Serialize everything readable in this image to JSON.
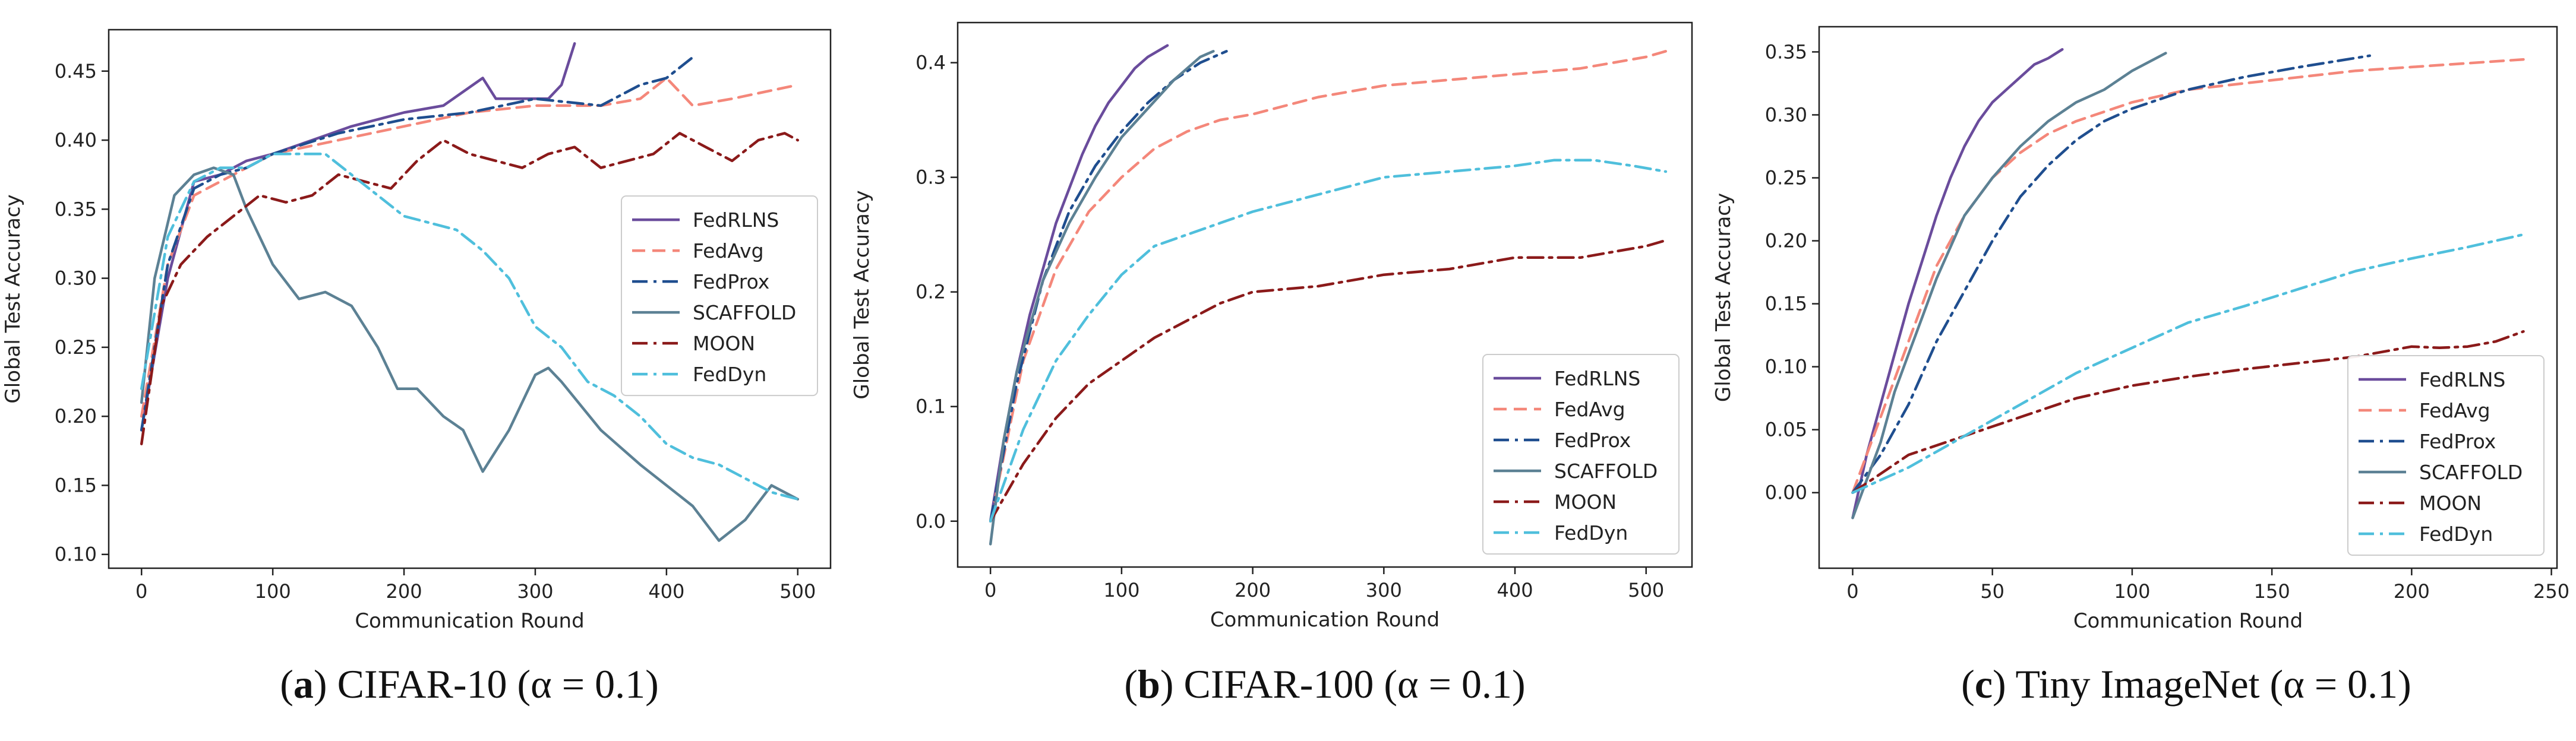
{
  "legend_labels": [
    "FedRLNS",
    "FedAvg",
    "FedProx",
    "SCAFFOLD",
    "MOON",
    "FedDyn"
  ],
  "series_styles": {
    "FedRLNS": {
      "color": "#6a4c9c",
      "dash": "solid"
    },
    "FedAvg": {
      "color": "#f4877a",
      "dash": "dashed"
    },
    "FedProx": {
      "color": "#1f4e8f",
      "dash": "dashdot"
    },
    "SCAFFOLD": {
      "color": "#5c8194",
      "dash": "solid"
    },
    "MOON": {
      "color": "#8b1a1a",
      "dash": "dashdot"
    },
    "FedDyn": {
      "color": "#4fbfdc",
      "dash": "dashdot"
    }
  },
  "chart_data": [
    {
      "type": "line",
      "panel": "a",
      "caption": {
        "label": "a",
        "text": "CIFAR-10 (α = 0.1)"
      },
      "xlabel": "Communication Round",
      "ylabel": "Global Test Accuracy",
      "xlim": [
        -25,
        525
      ],
      "ylim": [
        0.09,
        0.48
      ],
      "xticks": [
        0,
        100,
        200,
        300,
        400,
        500
      ],
      "yticks": [
        0.1,
        0.15,
        0.2,
        0.25,
        0.3,
        0.35,
        0.4,
        0.45
      ],
      "ytick_labels": [
        "0.10",
        "0.15",
        "0.20",
        "0.25",
        "0.30",
        "0.35",
        "0.40",
        "0.45"
      ],
      "legend_position": "center-right",
      "series": [
        {
          "name": "FedRLNS",
          "x": [
            0,
            20,
            40,
            60,
            80,
            100,
            130,
            160,
            200,
            230,
            260,
            270,
            290,
            310,
            320,
            330
          ],
          "y": [
            0.19,
            0.3,
            0.37,
            0.375,
            0.385,
            0.39,
            0.4,
            0.41,
            0.42,
            0.425,
            0.445,
            0.43,
            0.43,
            0.43,
            0.44,
            0.47
          ]
        },
        {
          "name": "FedAvg",
          "x": [
            0,
            20,
            40,
            60,
            80,
            100,
            150,
            200,
            250,
            300,
            350,
            380,
            400,
            420,
            450,
            500
          ],
          "y": [
            0.2,
            0.31,
            0.36,
            0.37,
            0.38,
            0.39,
            0.4,
            0.41,
            0.42,
            0.425,
            0.425,
            0.43,
            0.445,
            0.425,
            0.43,
            0.44
          ]
        },
        {
          "name": "FedProx",
          "x": [
            0,
            20,
            40,
            60,
            80,
            100,
            150,
            200,
            250,
            300,
            350,
            380,
            400,
            420
          ],
          "y": [
            0.19,
            0.31,
            0.365,
            0.375,
            0.38,
            0.39,
            0.405,
            0.415,
            0.42,
            0.43,
            0.425,
            0.44,
            0.445,
            0.46
          ]
        },
        {
          "name": "SCAFFOLD",
          "x": [
            0,
            10,
            25,
            40,
            55,
            70,
            80,
            100,
            120,
            140,
            160,
            180,
            195,
            210,
            230,
            245,
            260,
            280,
            300,
            310,
            320,
            350,
            380,
            400,
            420,
            440,
            460,
            480,
            500
          ],
          "y": [
            0.21,
            0.3,
            0.36,
            0.375,
            0.38,
            0.375,
            0.35,
            0.31,
            0.285,
            0.29,
            0.28,
            0.25,
            0.22,
            0.22,
            0.2,
            0.19,
            0.16,
            0.19,
            0.23,
            0.235,
            0.225,
            0.19,
            0.165,
            0.15,
            0.135,
            0.11,
            0.125,
            0.15,
            0.14
          ]
        },
        {
          "name": "MOON",
          "x": [
            0,
            15,
            30,
            50,
            70,
            90,
            110,
            130,
            150,
            170,
            190,
            210,
            230,
            250,
            270,
            290,
            310,
            330,
            350,
            370,
            390,
            410,
            430,
            450,
            470,
            490,
            500
          ],
          "y": [
            0.18,
            0.28,
            0.31,
            0.33,
            0.345,
            0.36,
            0.355,
            0.36,
            0.375,
            0.37,
            0.365,
            0.385,
            0.4,
            0.39,
            0.385,
            0.38,
            0.39,
            0.395,
            0.38,
            0.385,
            0.39,
            0.405,
            0.395,
            0.385,
            0.4,
            0.405,
            0.4
          ]
        },
        {
          "name": "FedDyn",
          "x": [
            0,
            20,
            40,
            60,
            80,
            100,
            120,
            140,
            160,
            180,
            200,
            220,
            240,
            260,
            280,
            300,
            320,
            340,
            360,
            380,
            400,
            420,
            440,
            460,
            480,
            500
          ],
          "y": [
            0.22,
            0.33,
            0.37,
            0.38,
            0.38,
            0.39,
            0.39,
            0.39,
            0.375,
            0.36,
            0.345,
            0.34,
            0.335,
            0.32,
            0.3,
            0.265,
            0.25,
            0.225,
            0.215,
            0.2,
            0.18,
            0.17,
            0.165,
            0.155,
            0.145,
            0.14
          ]
        }
      ]
    },
    {
      "type": "line",
      "panel": "b",
      "caption": {
        "label": "b",
        "text": "CIFAR-100 (α = 0.1)"
      },
      "xlabel": "Communication Round",
      "ylabel": "Global Test Accuracy",
      "xlim": [
        -25,
        535
      ],
      "ylim": [
        -0.04,
        0.435
      ],
      "xticks": [
        0,
        100,
        200,
        300,
        400,
        500
      ],
      "yticks": [
        0.0,
        0.1,
        0.2,
        0.3,
        0.4
      ],
      "ytick_labels": [
        "0.0",
        "0.1",
        "0.2",
        "0.3",
        "0.4"
      ],
      "legend_position": "lower-right",
      "series": [
        {
          "name": "FedRLNS",
          "x": [
            0,
            10,
            20,
            30,
            40,
            50,
            60,
            70,
            80,
            90,
            100,
            110,
            120,
            135
          ],
          "y": [
            0.0,
            0.07,
            0.13,
            0.18,
            0.22,
            0.26,
            0.29,
            0.32,
            0.345,
            0.365,
            0.38,
            0.395,
            0.405,
            0.415
          ]
        },
        {
          "name": "FedAvg",
          "x": [
            0,
            25,
            50,
            75,
            100,
            125,
            150,
            175,
            200,
            250,
            300,
            350,
            400,
            450,
            500,
            515
          ],
          "y": [
            0.0,
            0.14,
            0.22,
            0.27,
            0.3,
            0.325,
            0.34,
            0.35,
            0.355,
            0.37,
            0.38,
            0.385,
            0.39,
            0.395,
            0.405,
            0.41
          ]
        },
        {
          "name": "FedProx",
          "x": [
            0,
            20,
            40,
            60,
            80,
            100,
            120,
            140,
            160,
            180
          ],
          "y": [
            0.0,
            0.12,
            0.21,
            0.27,
            0.31,
            0.34,
            0.365,
            0.385,
            0.4,
            0.41
          ]
        },
        {
          "name": "SCAFFOLD",
          "x": [
            0,
            10,
            20,
            40,
            60,
            80,
            100,
            120,
            140,
            160,
            170
          ],
          "y": [
            -0.02,
            0.07,
            0.13,
            0.21,
            0.26,
            0.3,
            0.335,
            0.36,
            0.385,
            0.405,
            0.41
          ]
        },
        {
          "name": "MOON",
          "x": [
            0,
            25,
            50,
            75,
            100,
            125,
            150,
            175,
            200,
            250,
            300,
            350,
            400,
            450,
            500,
            515
          ],
          "y": [
            0.0,
            0.05,
            0.09,
            0.12,
            0.14,
            0.16,
            0.175,
            0.19,
            0.2,
            0.205,
            0.215,
            0.22,
            0.23,
            0.23,
            0.24,
            0.245
          ]
        },
        {
          "name": "FedDyn",
          "x": [
            0,
            25,
            50,
            75,
            100,
            125,
            150,
            175,
            200,
            250,
            300,
            350,
            400,
            430,
            460,
            490,
            515
          ],
          "y": [
            0.0,
            0.08,
            0.14,
            0.18,
            0.215,
            0.24,
            0.25,
            0.26,
            0.27,
            0.285,
            0.3,
            0.305,
            0.31,
            0.315,
            0.315,
            0.31,
            0.305
          ]
        }
      ]
    },
    {
      "type": "line",
      "panel": "c",
      "caption": {
        "label": "c",
        "text": "Tiny ImageNet (α = 0.1)"
      },
      "xlabel": "Communication Round",
      "ylabel": "Global Test Accuracy",
      "xlim": [
        -12,
        252
      ],
      "ylim": [
        -0.06,
        0.37
      ],
      "xticks": [
        0,
        50,
        100,
        150,
        200,
        250
      ],
      "yticks": [
        0.0,
        0.05,
        0.1,
        0.15,
        0.2,
        0.25,
        0.3,
        0.35
      ],
      "ytick_labels": [
        "0.00",
        "0.05",
        "0.10",
        "0.15",
        "0.20",
        "0.25",
        "0.30",
        "0.35"
      ],
      "legend_position": "lower-right",
      "series": [
        {
          "name": "FedRLNS",
          "x": [
            0,
            5,
            10,
            15,
            20,
            25,
            30,
            35,
            40,
            45,
            50,
            55,
            60,
            65,
            70,
            75
          ],
          "y": [
            -0.02,
            0.03,
            0.07,
            0.11,
            0.15,
            0.185,
            0.22,
            0.25,
            0.275,
            0.295,
            0.31,
            0.32,
            0.33,
            0.34,
            0.345,
            0.352
          ]
        },
        {
          "name": "FedAvg",
          "x": [
            0,
            10,
            20,
            30,
            40,
            50,
            60,
            70,
            80,
            100,
            120,
            140,
            160,
            180,
            200,
            220,
            240
          ],
          "y": [
            0.0,
            0.06,
            0.12,
            0.18,
            0.22,
            0.25,
            0.27,
            0.285,
            0.295,
            0.31,
            0.32,
            0.325,
            0.33,
            0.335,
            0.338,
            0.341,
            0.344
          ]
        },
        {
          "name": "FedProx",
          "x": [
            0,
            10,
            20,
            30,
            40,
            50,
            60,
            70,
            80,
            90,
            100,
            120,
            140,
            160,
            185
          ],
          "y": [
            0.0,
            0.03,
            0.07,
            0.12,
            0.16,
            0.2,
            0.235,
            0.26,
            0.28,
            0.295,
            0.305,
            0.32,
            0.33,
            0.338,
            0.347
          ]
        },
        {
          "name": "SCAFFOLD",
          "x": [
            0,
            5,
            10,
            15,
            20,
            25,
            30,
            40,
            50,
            60,
            70,
            80,
            90,
            100,
            112
          ],
          "y": [
            -0.02,
            0.01,
            0.04,
            0.08,
            0.11,
            0.14,
            0.17,
            0.22,
            0.25,
            0.275,
            0.295,
            0.31,
            0.32,
            0.335,
            0.349
          ]
        },
        {
          "name": "MOON",
          "x": [
            0,
            20,
            40,
            60,
            80,
            100,
            120,
            140,
            160,
            180,
            200,
            210,
            220,
            230,
            240
          ],
          "y": [
            0.0,
            0.03,
            0.045,
            0.06,
            0.075,
            0.085,
            0.092,
            0.098,
            0.103,
            0.108,
            0.116,
            0.115,
            0.116,
            0.12,
            0.128
          ]
        },
        {
          "name": "FedDyn",
          "x": [
            0,
            20,
            40,
            60,
            80,
            100,
            120,
            140,
            160,
            180,
            200,
            220,
            240
          ],
          "y": [
            0.0,
            0.02,
            0.045,
            0.07,
            0.095,
            0.115,
            0.135,
            0.148,
            0.162,
            0.176,
            0.186,
            0.195,
            0.205
          ]
        }
      ]
    }
  ]
}
